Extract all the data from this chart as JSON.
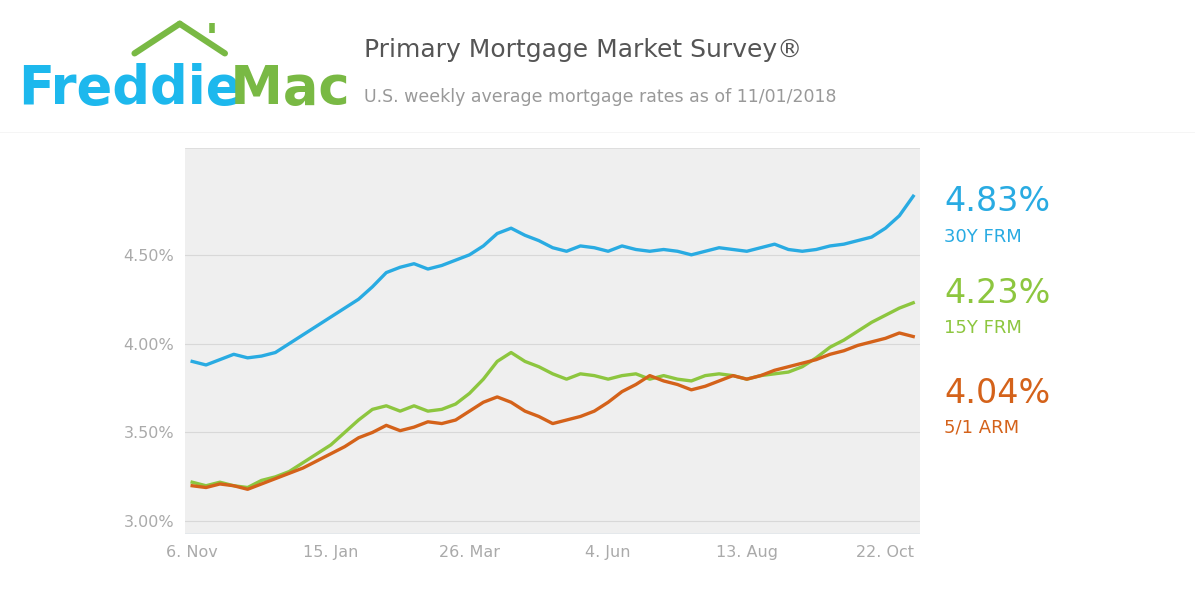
{
  "title_main": "Primary Mortgage Market Survey®",
  "title_sub": "U.S. weekly average mortgage rates as of 11/01/2018",
  "logo_blue": "#1db8ed",
  "logo_green": "#79b944",
  "line_30y_color": "#29abe2",
  "line_15y_color": "#8dc63f",
  "line_arm_color": "#d4621a",
  "label_30y": "4.83%",
  "label_15y": "4.23%",
  "label_arm": "4.04%",
  "label_30y_name": "30Y FRM",
  "label_15y_name": "15Y FRM",
  "label_arm_name": "5/1 ARM",
  "ylim": [
    2.93,
    5.1
  ],
  "yticks": [
    3.0,
    3.5,
    4.0,
    4.5
  ],
  "ytick_labels": [
    "3.00%",
    "3.50%",
    "4.00%",
    "4.50%"
  ],
  "plot_bg": "#efefef",
  "grid_color": "#d8d8d8",
  "x_tick_labels": [
    "6. Nov",
    "15. Jan",
    "26. Mar",
    "4. Jun",
    "13. Aug",
    "22. Oct"
  ],
  "data_30y": [
    3.9,
    3.88,
    3.91,
    3.94,
    3.92,
    3.93,
    3.95,
    4.0,
    4.05,
    4.1,
    4.15,
    4.2,
    4.25,
    4.32,
    4.4,
    4.43,
    4.45,
    4.42,
    4.44,
    4.47,
    4.5,
    4.55,
    4.62,
    4.65,
    4.61,
    4.58,
    4.54,
    4.52,
    4.55,
    4.54,
    4.52,
    4.55,
    4.53,
    4.52,
    4.53,
    4.52,
    4.5,
    4.52,
    4.54,
    4.53,
    4.52,
    4.54,
    4.56,
    4.53,
    4.52,
    4.53,
    4.55,
    4.56,
    4.58,
    4.6,
    4.65,
    4.72,
    4.83
  ],
  "data_15y": [
    3.22,
    3.2,
    3.22,
    3.2,
    3.19,
    3.23,
    3.25,
    3.28,
    3.33,
    3.38,
    3.43,
    3.5,
    3.57,
    3.63,
    3.65,
    3.62,
    3.65,
    3.62,
    3.63,
    3.66,
    3.72,
    3.8,
    3.9,
    3.95,
    3.9,
    3.87,
    3.83,
    3.8,
    3.83,
    3.82,
    3.8,
    3.82,
    3.83,
    3.8,
    3.82,
    3.8,
    3.79,
    3.82,
    3.83,
    3.82,
    3.8,
    3.82,
    3.83,
    3.84,
    3.87,
    3.92,
    3.98,
    4.02,
    4.07,
    4.12,
    4.16,
    4.2,
    4.23
  ],
  "data_arm": [
    3.2,
    3.19,
    3.21,
    3.2,
    3.18,
    3.21,
    3.24,
    3.27,
    3.3,
    3.34,
    3.38,
    3.42,
    3.47,
    3.5,
    3.54,
    3.51,
    3.53,
    3.56,
    3.55,
    3.57,
    3.62,
    3.67,
    3.7,
    3.67,
    3.62,
    3.59,
    3.55,
    3.57,
    3.59,
    3.62,
    3.67,
    3.73,
    3.77,
    3.82,
    3.79,
    3.77,
    3.74,
    3.76,
    3.79,
    3.82,
    3.8,
    3.82,
    3.85,
    3.87,
    3.89,
    3.91,
    3.94,
    3.96,
    3.99,
    4.01,
    4.03,
    4.06,
    4.04
  ]
}
